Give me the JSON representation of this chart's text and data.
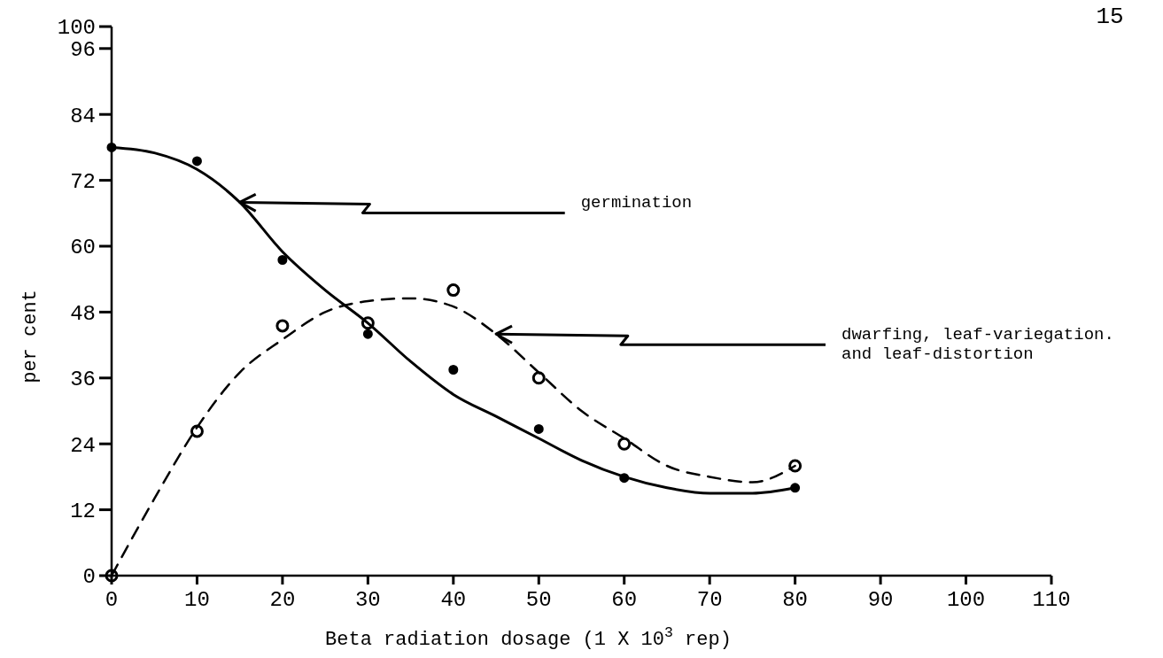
{
  "chart_data": {
    "type": "scatter",
    "xlabel": "Beta radiation dosage (1 X 10$^{3}$ rep)",
    "ylabel": "per cent",
    "xlim": [
      0,
      110
    ],
    "xticks": [
      0,
      10,
      20,
      30,
      40,
      50,
      60,
      70,
      80,
      90,
      100,
      110
    ],
    "ylim": [
      0,
      100
    ],
    "yticks": [
      0,
      12,
      24,
      36,
      48,
      60,
      72,
      84,
      96,
      100
    ],
    "grid": false,
    "series": [
      {
        "color": "#000000",
        "marker": "circle",
        "x": [
          0,
          10,
          20,
          30,
          40,
          50,
          60,
          80
        ],
        "values": [
          78,
          75.5,
          57.5,
          44,
          37.5,
          26.7,
          17.8,
          16
        ]
      },
      {
        "color": "#000000",
        "marker": "circle",
        "x": [
          0,
          10,
          20,
          30,
          40,
          50,
          60,
          80
        ],
        "values": [
          0,
          26.3,
          45.5,
          46,
          52,
          36,
          24,
          20
        ]
      },
      {
        "type": "line",
        "color": "#000000",
        "line_style": "solid",
        "marker": "none",
        "x": [
          0,
          5,
          10,
          15,
          20,
          25,
          30,
          35,
          40,
          45,
          50,
          55,
          60,
          65,
          70,
          75,
          80
        ],
        "values": [
          78,
          77,
          74,
          68,
          59,
          52,
          46,
          39,
          33,
          29,
          25,
          21,
          18,
          16,
          15,
          15,
          16
        ]
      },
      {
        "type": "line",
        "color": "#000000",
        "line_style": "dashed",
        "marker": "none",
        "x": [
          0,
          5,
          10,
          15,
          20,
          25,
          30,
          35,
          40,
          45,
          50,
          55,
          60,
          65,
          70,
          75,
          80
        ],
        "values": [
          0,
          14,
          27,
          37,
          43,
          48,
          50,
          50.5,
          49,
          44,
          37,
          30,
          25,
          20,
          18,
          17,
          20
        ]
      }
    ],
    "annotations": [
      {
        "text": "germination",
        "x": 15,
        "y": 68
      },
      {
        "text": "dwarfing, leaf-variegation.\nand leaf-distortion",
        "x": 45,
        "y": 44
      },
      "15"
    ]
  }
}
